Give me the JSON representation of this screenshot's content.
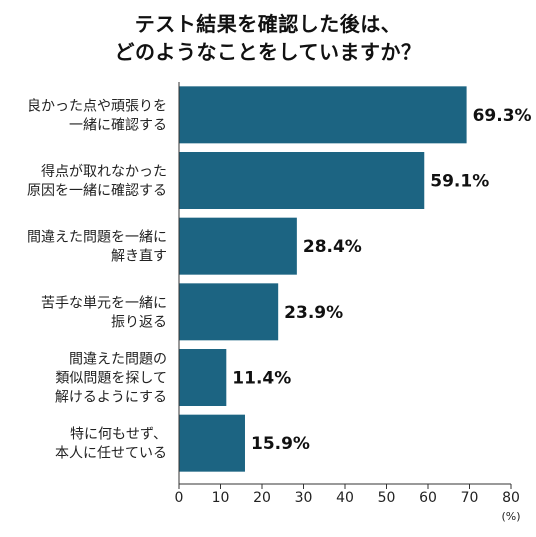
{
  "title": {
    "line1": "テスト結果を確認した後は、",
    "line2": "どのようなことをしていますか？"
  },
  "chart_data": {
    "type": "bar",
    "orientation": "horizontal",
    "categories": [
      [
        "良かった点や頑張りを",
        "一緒に確認する"
      ],
      [
        "得点が取れなかった",
        "原因を一緒に確認する"
      ],
      [
        "間違えた問題を一緒に",
        "解き直す"
      ],
      [
        "苦手な単元を一緒に",
        "振り返る"
      ],
      [
        "間違えた問題の",
        "類似問題を探して",
        "解けるようにする"
      ],
      [
        "特に何もせず、",
        "本人に任せている"
      ]
    ],
    "values": [
      69.3,
      59.1,
      28.4,
      23.9,
      11.4,
      15.9
    ],
    "value_labels": [
      "69.3%",
      "59.1%",
      "28.4%",
      "23.9%",
      "11.4%",
      "15.9%"
    ],
    "xlim": [
      0,
      80
    ],
    "xticks": [
      0,
      10,
      20,
      30,
      40,
      50,
      60,
      70,
      80
    ],
    "unit": "(%)",
    "bar_color": "#1c6482",
    "grid": false
  }
}
